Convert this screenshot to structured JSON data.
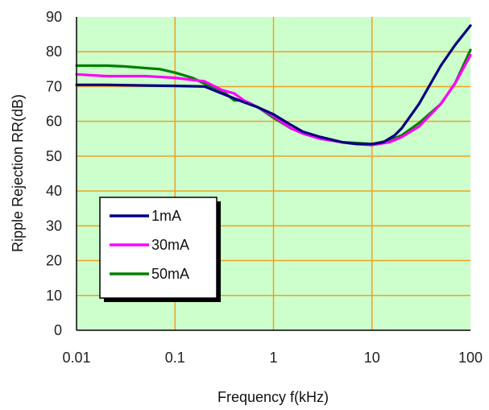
{
  "chart_data": {
    "type": "line",
    "xlabel": "Frequency f(kHz)",
    "ylabel": "Ripple Rejection RR(dB)",
    "x_scale": "log",
    "xlim": [
      0.01,
      100
    ],
    "ylim": [
      0,
      90
    ],
    "x_ticks": [
      "0.01",
      "0.1",
      "1",
      "10",
      "100"
    ],
    "y_ticks": [
      "0",
      "10",
      "20",
      "30",
      "40",
      "50",
      "60",
      "70",
      "80",
      "90"
    ],
    "grid": true,
    "legend_position": "bottom-left",
    "colors": {
      "plot_background": "#ccffcc",
      "grid": "#f0a020",
      "axis": "#000000"
    },
    "series": [
      {
        "name": "1mA",
        "color": "#000080",
        "points": [
          [
            0.01,
            70.5
          ],
          [
            0.02,
            70.5
          ],
          [
            0.05,
            70.3
          ],
          [
            0.1,
            70.2
          ],
          [
            0.2,
            70
          ],
          [
            0.3,
            68
          ],
          [
            0.5,
            65.5
          ],
          [
            0.7,
            64
          ],
          [
            1,
            62
          ],
          [
            1.5,
            59
          ],
          [
            2,
            57
          ],
          [
            3,
            55.5
          ],
          [
            5,
            54
          ],
          [
            7,
            53.5
          ],
          [
            10,
            53.5
          ],
          [
            13,
            54
          ],
          [
            17,
            56
          ],
          [
            20,
            58
          ],
          [
            30,
            65
          ],
          [
            50,
            76
          ],
          [
            70,
            82
          ],
          [
            100,
            87.5
          ]
        ]
      },
      {
        "name": "30mA",
        "color": "#ff00ff",
        "points": [
          [
            0.01,
            73.5
          ],
          [
            0.02,
            73
          ],
          [
            0.05,
            73
          ],
          [
            0.1,
            72.5
          ],
          [
            0.2,
            71.5
          ],
          [
            0.3,
            69
          ],
          [
            0.4,
            68
          ],
          [
            0.5,
            66
          ],
          [
            0.7,
            64
          ],
          [
            1,
            61.5
          ],
          [
            1.5,
            58
          ],
          [
            2,
            56.5
          ],
          [
            3,
            55
          ],
          [
            5,
            54
          ],
          [
            7,
            53.5
          ],
          [
            10,
            53.2
          ],
          [
            15,
            54
          ],
          [
            20,
            55.5
          ],
          [
            30,
            58.5
          ],
          [
            50,
            65
          ],
          [
            70,
            71
          ],
          [
            100,
            79
          ]
        ]
      },
      {
        "name": "50mA",
        "color": "#008000",
        "points": [
          [
            0.01,
            76
          ],
          [
            0.02,
            76
          ],
          [
            0.03,
            75.8
          ],
          [
            0.05,
            75.3
          ],
          [
            0.07,
            75
          ],
          [
            0.1,
            74
          ],
          [
            0.15,
            72.5
          ],
          [
            0.2,
            70.8
          ],
          [
            0.3,
            68.8
          ],
          [
            0.4,
            66
          ],
          [
            0.5,
            66
          ],
          [
            0.7,
            64
          ],
          [
            1,
            61
          ],
          [
            1.5,
            58
          ],
          [
            2,
            56.5
          ],
          [
            3,
            55
          ],
          [
            5,
            54
          ],
          [
            7,
            53.8
          ],
          [
            10,
            53.5
          ],
          [
            15,
            54.5
          ],
          [
            20,
            56
          ],
          [
            30,
            59.5
          ],
          [
            50,
            65
          ],
          [
            70,
            71
          ],
          [
            100,
            80.5
          ]
        ]
      }
    ]
  }
}
